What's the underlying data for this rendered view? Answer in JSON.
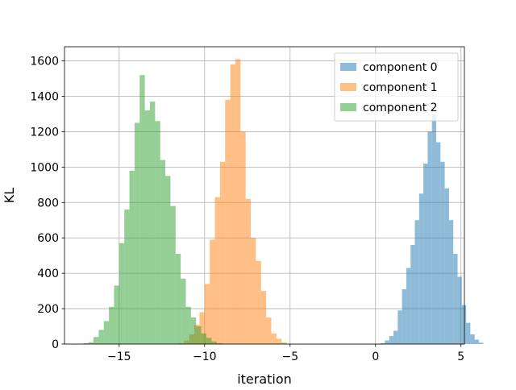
{
  "chart_data": {
    "type": "histogram",
    "xlabel": "iteration",
    "ylabel": "KL",
    "xlim": [
      -18.2,
      5.2
    ],
    "ylim": [
      0,
      1680
    ],
    "xticks": [
      -15,
      -10,
      -5,
      0,
      5
    ],
    "xtick_labels": [
      "−15",
      "−10",
      "−5",
      "0",
      "5"
    ],
    "yticks": [
      0,
      200,
      400,
      600,
      800,
      1000,
      1200,
      1400,
      1600
    ],
    "ytick_labels": [
      "0",
      "200",
      "400",
      "600",
      "800",
      "1000",
      "1200",
      "1400",
      "1600"
    ],
    "grid": true,
    "legend_position": "top-right",
    "series": [
      {
        "name": "component 0",
        "color": "#1f77b4",
        "opacity": 0.5,
        "bin_start": 0.3,
        "bin_width": 0.25,
        "counts": [
          5,
          20,
          45,
          75,
          190,
          310,
          430,
          560,
          700,
          850,
          1020,
          1200,
          1300,
          1140,
          1030,
          880,
          700,
          510,
          380,
          220,
          120,
          55,
          25,
          8
        ]
      },
      {
        "name": "component 1",
        "color": "#ff7f0e",
        "opacity": 0.5,
        "bin_start": -11.5,
        "bin_width": 0.3,
        "counts": [
          5,
          20,
          55,
          110,
          180,
          340,
          590,
          830,
          1030,
          1380,
          1580,
          1610,
          1200,
          820,
          600,
          470,
          300,
          150,
          60,
          30,
          10
        ]
      },
      {
        "name": "component 2",
        "color": "#2ca02c",
        "opacity": 0.5,
        "bin_start": -17.1,
        "bin_width": 0.3,
        "counts": [
          5,
          10,
          40,
          80,
          130,
          210,
          330,
          570,
          760,
          980,
          1250,
          1520,
          1320,
          1370,
          1260,
          1040,
          950,
          780,
          510,
          370,
          210,
          150,
          100,
          60,
          35,
          15,
          5
        ]
      }
    ]
  }
}
